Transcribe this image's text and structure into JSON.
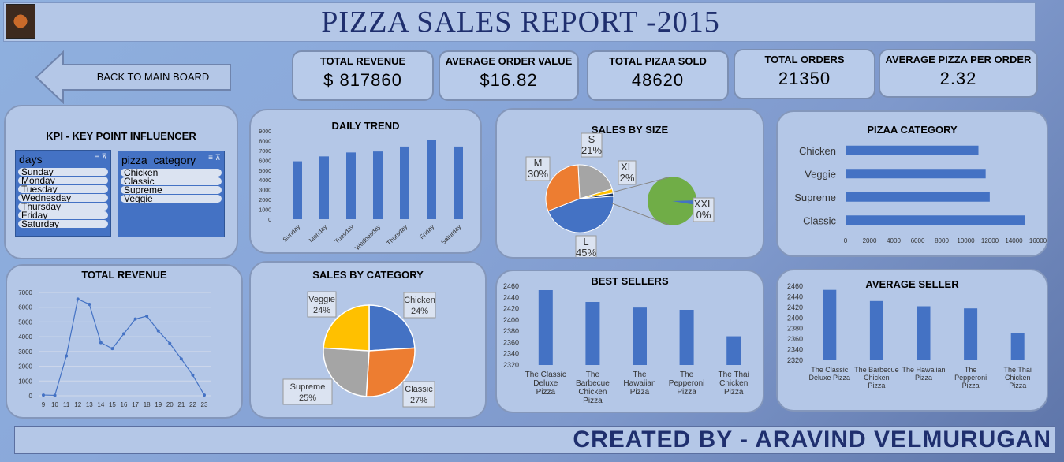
{
  "title": "PIZZA SALES REPORT -2015",
  "back_button": "BACK TO MAIN BOARD",
  "kpis": [
    {
      "label": "TOTAL REVENUE",
      "value": "$ 817860"
    },
    {
      "label": "AVERAGE ORDER VALUE",
      "value": "$16.82"
    },
    {
      "label": "TOTAL PIZAA SOLD",
      "value": "48620"
    },
    {
      "label": "TOTAL ORDERS",
      "value": "21350"
    },
    {
      "label": "AVERAGE PIZZA PER ORDER",
      "value": "2.32"
    }
  ],
  "kpi_panel": {
    "title": "KPI - KEY POINT INFLUENCER",
    "days_slicer": {
      "header": "days",
      "items": [
        "Sunday",
        "Monday",
        "Tuesday",
        "Wednesday",
        "Thursday",
        "Friday",
        "Saturday"
      ]
    },
    "category_slicer": {
      "header": "pizza_category",
      "items": [
        "Chicken",
        "Classic",
        "Supreme",
        "Veggie"
      ]
    }
  },
  "footer": "CREATED BY - ARAVIND VELMURUGAN",
  "colors": {
    "blue": "#4472c4",
    "orange": "#ed7d31",
    "gray": "#a5a5a5",
    "yellow": "#ffc000",
    "green": "#70ad47",
    "title": "#1f2f6e"
  },
  "chart_data": [
    {
      "id": "daily_trend",
      "type": "bar",
      "title": "DAILY TREND",
      "categories": [
        "Sunday",
        "Monday",
        "Tuesday",
        "Wednesday",
        "Thursday",
        "Friday",
        "Saturday"
      ],
      "values": [
        5900,
        6400,
        6800,
        6900,
        7400,
        8100,
        7400
      ],
      "ylim": [
        0,
        9000
      ],
      "yticks": [
        "0",
        "1000",
        "2000",
        "3000",
        "4000",
        "5000",
        "6000",
        "7000",
        "8000",
        "9000"
      ]
    },
    {
      "id": "sales_by_size",
      "type": "pie",
      "title": "SALES BY SIZE",
      "categories": [
        "L",
        "M",
        "S",
        "XL",
        "XXL"
      ],
      "values": [
        45,
        30,
        21,
        2,
        0
      ],
      "labels": [
        "45%",
        "30%",
        "21%",
        "2%",
        "0%"
      ]
    },
    {
      "id": "pizza_category",
      "type": "bar",
      "title": "PIZAA CATEGORY",
      "orientation": "horizontal",
      "categories": [
        "Chicken",
        "Veggie",
        "Supreme",
        "Classic"
      ],
      "values": [
        11050,
        11650,
        11990,
        14890
      ],
      "xlim": [
        0,
        16000
      ],
      "xticks": [
        "0",
        "2000",
        "4000",
        "6000",
        "8000",
        "10000",
        "12000",
        "14000",
        "16000"
      ]
    },
    {
      "id": "total_revenue",
      "type": "line",
      "title": "TOTAL REVENUE",
      "x": [
        "9",
        "10",
        "11",
        "12",
        "13",
        "14",
        "15",
        "16",
        "17",
        "18",
        "19",
        "20",
        "21",
        "22",
        "23"
      ],
      "values": [
        50,
        30,
        2700,
        6550,
        6200,
        3600,
        3200,
        4200,
        5200,
        5400,
        4400,
        3550,
        2500,
        1400,
        50
      ],
      "ylim": [
        0,
        7000
      ],
      "yticks": [
        "0",
        "1000",
        "2000",
        "3000",
        "4000",
        "5000",
        "6000",
        "7000"
      ]
    },
    {
      "id": "sales_by_category",
      "type": "pie",
      "title": "SALES BY CATEGORY",
      "categories": [
        "Chicken",
        "Classic",
        "Supreme",
        "Veggie"
      ],
      "values": [
        24,
        27,
        25,
        24
      ],
      "labels": [
        "24%",
        "27%",
        "25%",
        "24%"
      ]
    },
    {
      "id": "best_sellers",
      "type": "bar",
      "title": "BEST SELLERS",
      "categories": [
        "The Classic Deluxe Pizza",
        "The Barbecue Chicken Pizza",
        "The Hawaiian Pizza",
        "The Pepperoni Pizza",
        "The Thai Chicken Pizza"
      ],
      "values": [
        2453,
        2432,
        2422,
        2418,
        2371
      ],
      "ylim": [
        2320,
        2460
      ],
      "yticks": [
        "2320",
        "2340",
        "2360",
        "2380",
        "2400",
        "2420",
        "2440",
        "2460"
      ]
    },
    {
      "id": "average_seller",
      "type": "bar",
      "title": "AVERAGE SELLER",
      "categories": [
        "The Classic Deluxe Pizza",
        "The Barbecue Chicken Pizza",
        "The Hawaiian Pizza",
        "The Pepperoni Pizza",
        "The Thai Chicken Pizza"
      ],
      "values": [
        2453,
        2432,
        2422,
        2418,
        2371
      ],
      "ylim": [
        2320,
        2460
      ],
      "yticks": [
        "2320",
        "2340",
        "2360",
        "2380",
        "2400",
        "2420",
        "2440",
        "2460"
      ]
    }
  ]
}
